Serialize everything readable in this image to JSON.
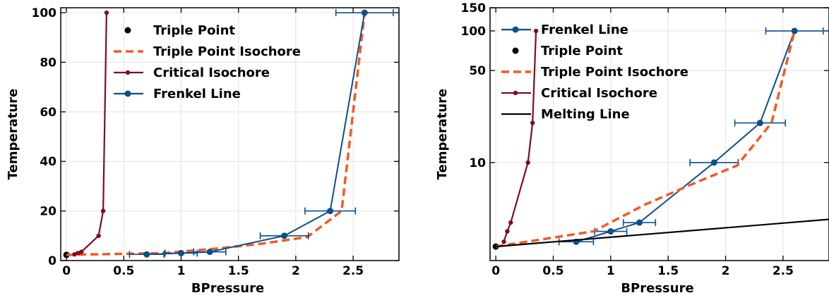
{
  "colors": {
    "triple_point": "#000000",
    "triple_isochore": "#f15a24",
    "critical_isochore": "#7b0c2c",
    "frenkel": "#0b4f8c",
    "melting": "#000000"
  },
  "chart_data": [
    {
      "type": "line",
      "xlabel": "BPressure",
      "ylabel": "Temperature",
      "xlim": [
        -0.05,
        2.9
      ],
      "ylim": [
        0,
        102
      ],
      "yscale": "linear",
      "xticks": [
        0,
        0.5,
        1,
        1.5,
        2,
        2.5
      ],
      "xtick_labels": [
        "0",
        "0.5",
        "1",
        "1.5",
        "2",
        "2.5"
      ],
      "yticks": [
        0,
        20,
        40,
        60,
        80,
        100
      ],
      "ytick_labels": [
        "0",
        "20",
        "40",
        "60",
        "80",
        "100"
      ],
      "grid": true,
      "legend_position": "top-center",
      "series": [
        {
          "key": "triple_point",
          "name": "Triple Point",
          "style": "point",
          "x": [
            0.0
          ],
          "y": [
            2.3
          ]
        },
        {
          "key": "triple_isochore",
          "name": "Triple Point Isochore",
          "style": "dashed",
          "x": [
            0.0,
            0.85,
            1.3,
            1.7,
            2.1,
            2.4,
            2.6
          ],
          "y": [
            2.3,
            3.0,
            4.8,
            6.8,
            9.5,
            20.0,
            100.0
          ]
        },
        {
          "key": "critical_isochore",
          "name": "Critical Isochore",
          "style": "line-marker",
          "x": [
            0.07,
            0.1,
            0.13,
            0.28,
            0.32,
            0.35
          ],
          "y": [
            2.5,
            3.0,
            3.5,
            10.0,
            20.0,
            100.0
          ]
        },
        {
          "key": "frenkel",
          "name": "Frenkel Line",
          "style": "line-marker-errorbar",
          "x": [
            0.7,
            1.0,
            1.25,
            1.9,
            2.3,
            2.6
          ],
          "y": [
            2.5,
            3.0,
            3.5,
            10.0,
            20.0,
            100.0
          ],
          "xerr": [
            0.15,
            0.14,
            0.14,
            0.21,
            0.22,
            0.25
          ]
        }
      ]
    },
    {
      "type": "line",
      "xlabel": "BPressure",
      "ylabel": "Temperature",
      "xlim": [
        -0.05,
        2.9
      ],
      "ylim": [
        1.8,
        150
      ],
      "yscale": "log",
      "xticks": [
        0,
        0.5,
        1,
        1.5,
        2,
        2.5
      ],
      "xtick_labels": [
        "0",
        "0.5",
        "1",
        "1.5",
        "2",
        "2.5"
      ],
      "yticks": [
        10,
        50,
        100,
        150
      ],
      "ytick_labels": [
        "10",
        "50",
        "100",
        "150"
      ],
      "grid": true,
      "legend_position": "top-center",
      "series": [
        {
          "key": "frenkel",
          "name": "Frenkel Line",
          "style": "line-marker-errorbar",
          "x": [
            0.7,
            1.0,
            1.25,
            1.9,
            2.3,
            2.6
          ],
          "y": [
            2.5,
            3.0,
            3.5,
            10.0,
            20.0,
            100.0
          ],
          "xerr": [
            0.15,
            0.14,
            0.14,
            0.21,
            0.22,
            0.25
          ]
        },
        {
          "key": "triple_point",
          "name": "Triple Point",
          "style": "point",
          "x": [
            0.0
          ],
          "y": [
            2.3
          ]
        },
        {
          "key": "triple_isochore",
          "name": "Triple Point Isochore",
          "style": "dashed",
          "x": [
            0.0,
            0.85,
            1.3,
            1.7,
            2.1,
            2.4,
            2.6
          ],
          "y": [
            2.3,
            3.0,
            4.8,
            6.8,
            9.5,
            20.0,
            100.0
          ]
        },
        {
          "key": "critical_isochore",
          "name": "Critical Isochore",
          "style": "line-marker",
          "x": [
            0.07,
            0.1,
            0.13,
            0.28,
            0.32,
            0.35
          ],
          "y": [
            2.5,
            3.0,
            3.5,
            10.0,
            20.0,
            100.0
          ]
        },
        {
          "key": "melting",
          "name": "Melting Line",
          "style": "line",
          "x": [
            0.0,
            2.9
          ],
          "y": [
            2.3,
            3.7
          ]
        }
      ]
    }
  ]
}
